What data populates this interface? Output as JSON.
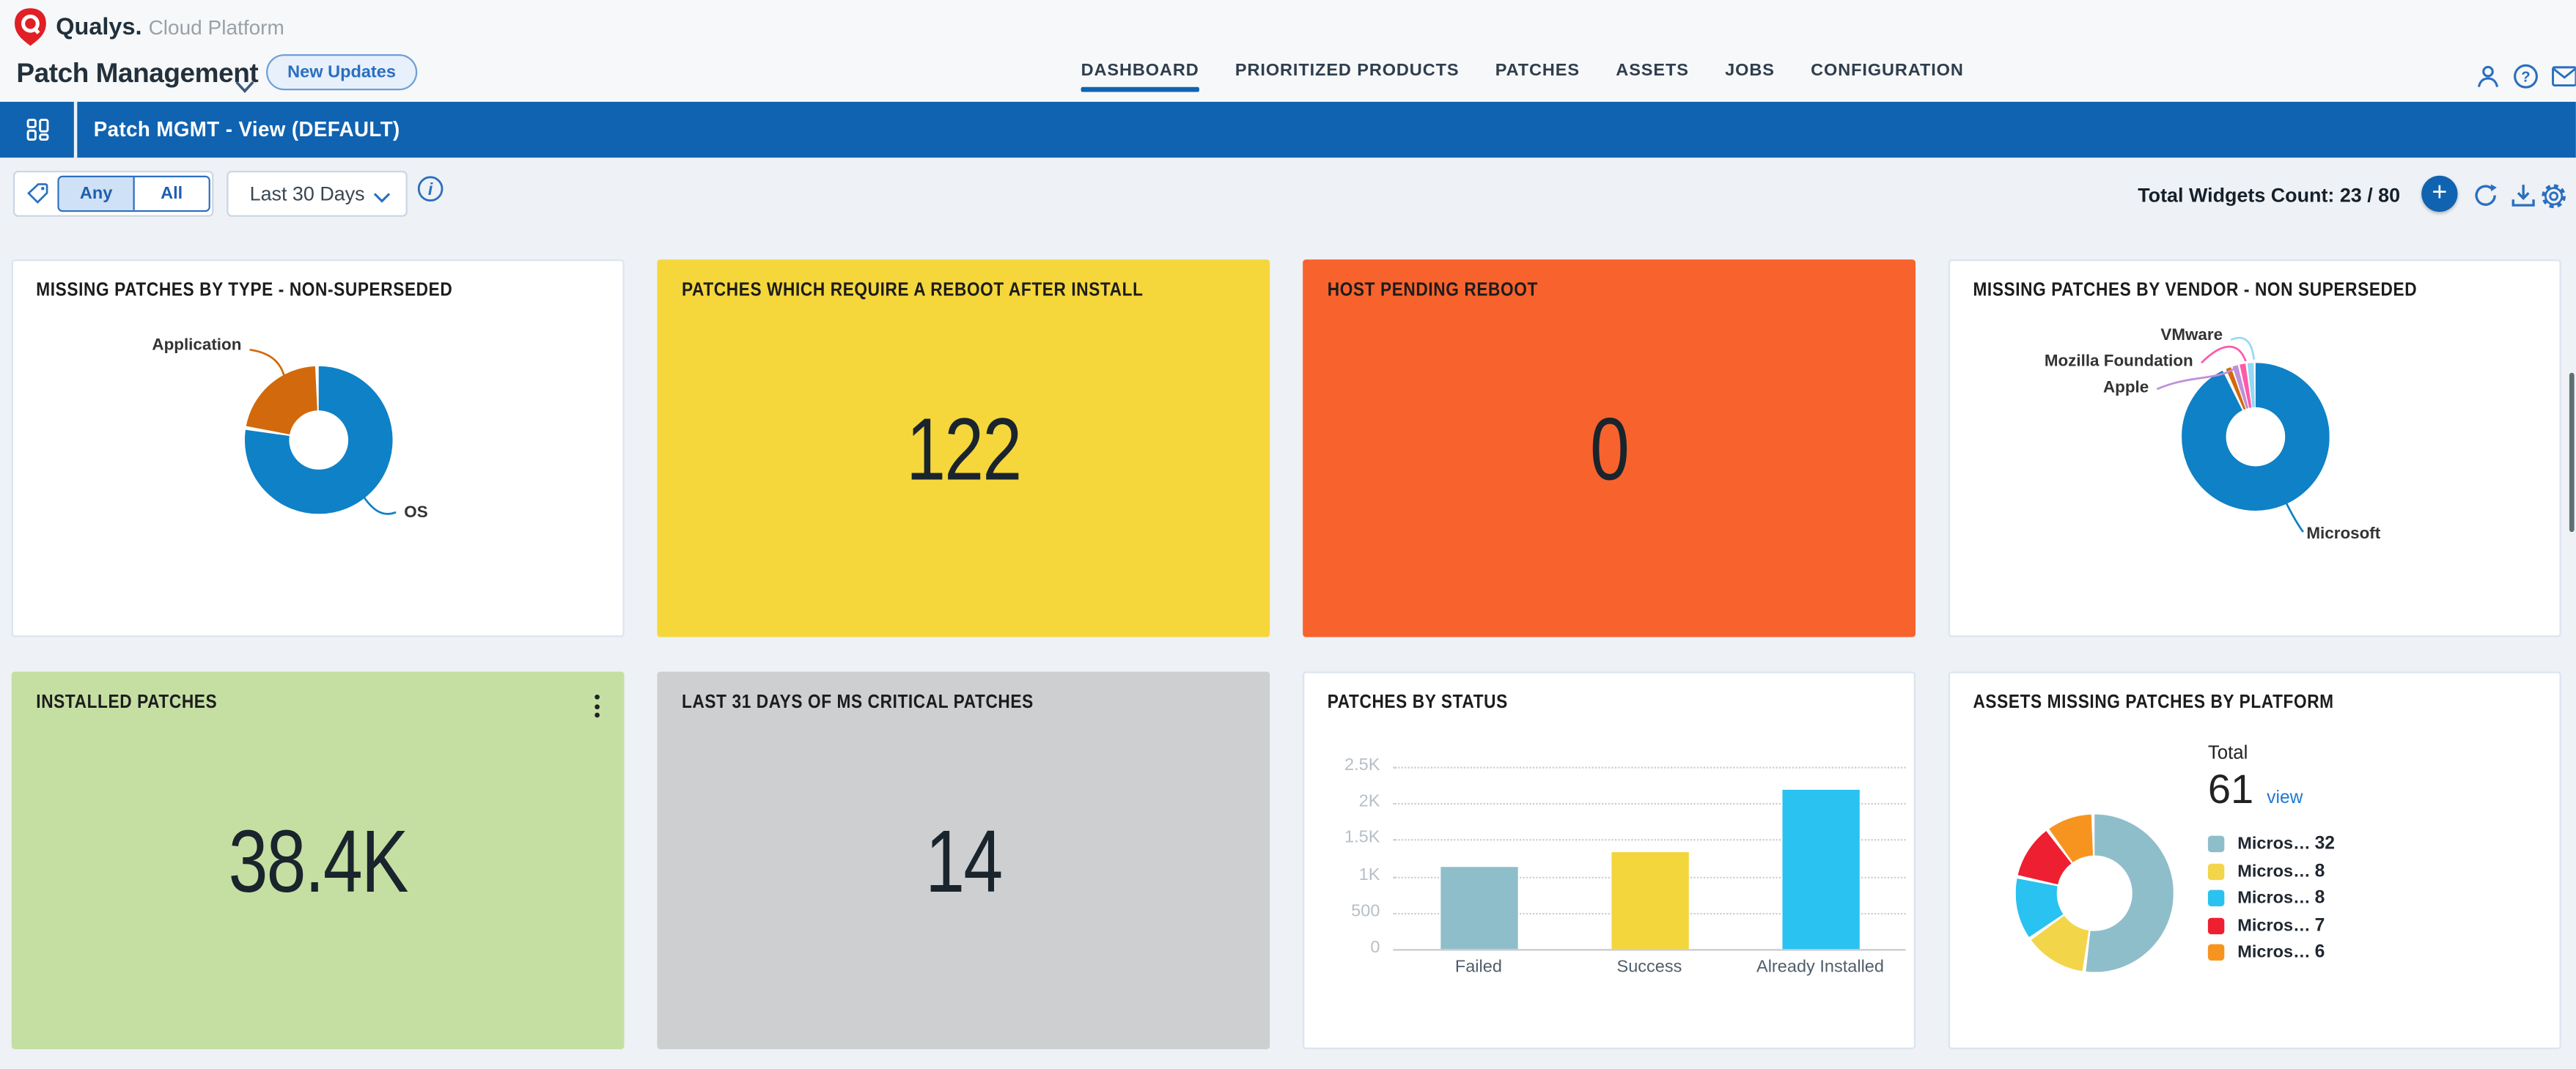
{
  "header": {
    "brand": "Qualys.",
    "brand_suffix": "Cloud Platform",
    "app_title": "Patch Management",
    "new_updates_label": "New Updates",
    "nav_tabs": [
      {
        "label": "DASHBOARD",
        "active": true
      },
      {
        "label": "PRIORITIZED PRODUCTS",
        "active": false
      },
      {
        "label": "PATCHES",
        "active": false
      },
      {
        "label": "ASSETS",
        "active": false
      },
      {
        "label": "JOBS",
        "active": false
      },
      {
        "label": "CONFIGURATION",
        "active": false
      }
    ],
    "icons": [
      "user",
      "help",
      "mail"
    ]
  },
  "view_bar": {
    "title": "Patch MGMT - View (DEFAULT)",
    "icon": "dashboard-grid"
  },
  "toolbar": {
    "tag_filter": {
      "options": [
        "Any",
        "All"
      ],
      "selected": "Any"
    },
    "time_range": "Last 30 Days",
    "widgets_count": "Total Widgets Count: 23 / 80",
    "icons": [
      "tag",
      "info",
      "add-widget",
      "refresh",
      "download",
      "settings"
    ]
  },
  "widgets": [
    {
      "title": "MISSING PATCHES BY TYPE - NON-SUPERSEDED",
      "kind": "donut"
    },
    {
      "title": "PATCHES WHICH REQUIRE A REBOOT AFTER INSTALL",
      "kind": "value",
      "value": "122",
      "bg": "#f5d73b"
    },
    {
      "title": "HOST PENDING REBOOT",
      "kind": "value",
      "value": "0",
      "bg": "#f8622d"
    },
    {
      "title": "MISSING PATCHES BY VENDOR - NON SUPERSEDED",
      "kind": "donut"
    },
    {
      "title": "INSTALLED PATCHES",
      "kind": "value",
      "value": "38.4K",
      "bg": "#c5dfa3",
      "menu": "kebab-menu"
    },
    {
      "title": "LAST 31 DAYS OF MS CRITICAL PATCHES",
      "kind": "value",
      "value": "14",
      "bg": "#cdcfd1"
    },
    {
      "title": "PATCHES BY STATUS",
      "kind": "bar"
    },
    {
      "title": "ASSETS MISSING PATCHES BY PLATFORM",
      "kind": "donut",
      "total_label": "Total",
      "total": "61",
      "view_label": "view"
    }
  ],
  "chart_data": [
    {
      "id": "missing-patches-by-type",
      "type": "pie",
      "title": "MISSING PATCHES BY TYPE - NON-SUPERSEDED",
      "slices": [
        {
          "label": "OS",
          "value": 78,
          "color": "#0f81c6"
        },
        {
          "label": "Application",
          "value": 22,
          "color": "#d2690c"
        }
      ],
      "legend_position": "callout-labels"
    },
    {
      "id": "missing-patches-by-vendor",
      "type": "pie",
      "title": "MISSING PATCHES BY VENDOR - NON SUPERSEDED",
      "slices": [
        {
          "label": "Microsoft",
          "value": 93.4,
          "color": "#0f81c6"
        },
        {
          "label": "",
          "value": 1.5,
          "color": "#d2690c"
        },
        {
          "label": "Apple",
          "value": 1.6,
          "color": "#c08fd8"
        },
        {
          "label": "Mozilla Foundation",
          "value": 1.7,
          "color": "#fc5ba8"
        },
        {
          "label": "VMware",
          "value": 1.8,
          "color": "#93d9f5"
        }
      ],
      "legend_position": "callout-labels"
    },
    {
      "id": "patches-by-status",
      "type": "bar",
      "title": "PATCHES BY STATUS",
      "categories": [
        "Failed",
        "Success",
        "Already Installed"
      ],
      "values": [
        1130,
        1320,
        2180
      ],
      "colors": [
        "#8fbecb",
        "#f3d53c",
        "#29c2f1"
      ],
      "ylim": [
        0,
        2500
      ],
      "yticks": [
        "2.5K",
        "2K",
        "1.5K",
        "1K",
        "500",
        "0"
      ],
      "grid": "dotted-horizontal"
    },
    {
      "id": "assets-missing-patches-by-platform",
      "type": "pie",
      "title": "ASSETS MISSING PATCHES BY PLATFORM",
      "total": 61,
      "slices": [
        {
          "label": "Micros…",
          "value": 32,
          "color": "#8fbecb"
        },
        {
          "label": "Micros…",
          "value": 8,
          "color": "#f3d54a"
        },
        {
          "label": "Micros…",
          "value": 8,
          "color": "#29c2f1"
        },
        {
          "label": "Micros…",
          "value": 7,
          "color": "#ee1f31"
        },
        {
          "label": "Micros…",
          "value": 6,
          "color": "#f79420"
        }
      ],
      "legend_position": "right"
    }
  ]
}
